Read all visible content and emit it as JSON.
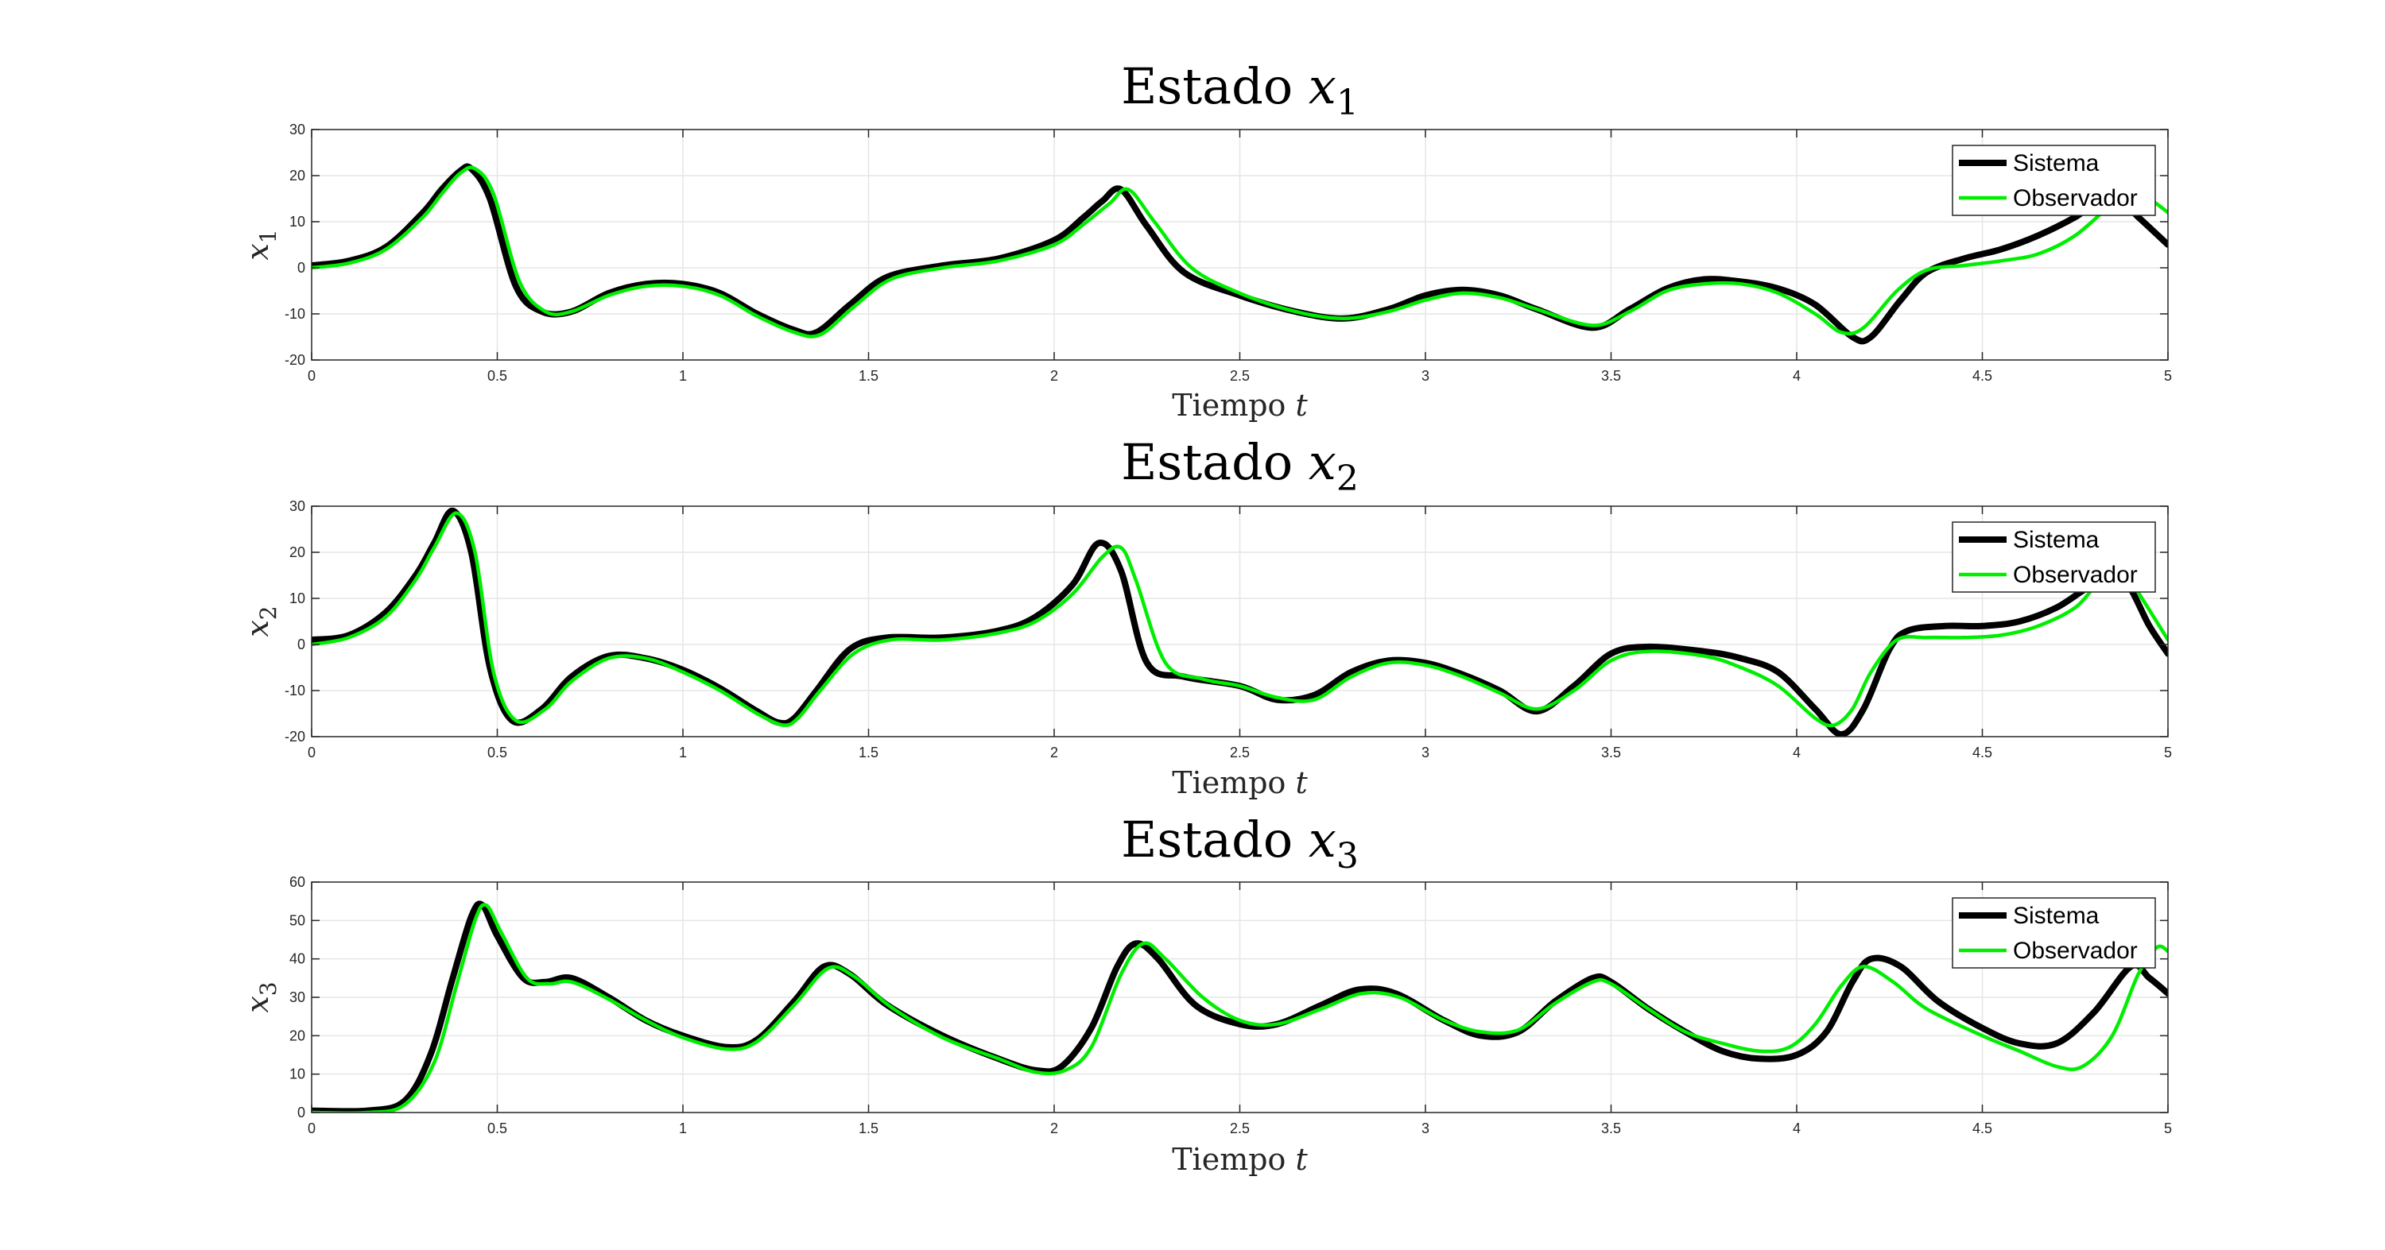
{
  "colors": {
    "sistema": "#000000",
    "observador": "#00ee00",
    "grid": "#e6e6e6",
    "axis": "#262626"
  },
  "chart_data": [
    {
      "type": "line",
      "title": "Estado x1",
      "title_parts": {
        "text": "Estado ",
        "var": "x",
        "sub": "1"
      },
      "xlabel": "Tiempo t",
      "xlabel_parts": {
        "text": "Tiempo ",
        "var": "t"
      },
      "ylabel": "x1",
      "ylabel_parts": {
        "var": "x",
        "sub": "1"
      },
      "xlim": [
        0,
        5
      ],
      "ylim": [
        -20,
        30
      ],
      "xticks": [
        0,
        0.5,
        1,
        1.5,
        2,
        2.5,
        3,
        3.5,
        4,
        4.5,
        5
      ],
      "xtick_labels": [
        "0",
        "0.5",
        "1",
        "1.5",
        "2",
        "2.5",
        "3",
        "3.5",
        "4",
        "4.5",
        "5"
      ],
      "yticks": [
        -20,
        -10,
        0,
        10,
        20,
        30
      ],
      "ytick_labels": [
        "-20",
        "-10",
        "0",
        "10",
        "20",
        "30"
      ],
      "grid": true,
      "legend": "top-right",
      "series": [
        {
          "name": "Sistema",
          "x": [
            0,
            0.1,
            0.2,
            0.3,
            0.35,
            0.4,
            0.43,
            0.48,
            0.55,
            0.62,
            0.7,
            0.8,
            0.9,
            1.0,
            1.1,
            1.2,
            1.3,
            1.36,
            1.45,
            1.55,
            1.7,
            1.85,
            2.0,
            2.08,
            2.13,
            2.18,
            2.25,
            2.35,
            2.5,
            2.65,
            2.78,
            2.9,
            3.0,
            3.1,
            3.2,
            3.3,
            3.45,
            3.55,
            3.65,
            3.75,
            3.85,
            3.95,
            4.05,
            4.15,
            4.2,
            4.28,
            4.35,
            4.45,
            4.55,
            4.65,
            4.75,
            4.85,
            4.92,
            5.0
          ],
          "y": [
            0.5,
            1.5,
            4.5,
            12,
            17,
            21,
            21.5,
            15,
            -4,
            -9.5,
            -9.5,
            -5.5,
            -3.5,
            -3.5,
            -5.5,
            -10,
            -13.5,
            -14,
            -8,
            -2,
            0.5,
            2,
            6,
            11,
            14.5,
            17,
            9,
            -1,
            -6,
            -9.5,
            -11,
            -9,
            -6,
            -4.8,
            -6,
            -9,
            -13,
            -9,
            -4.5,
            -2.5,
            -3,
            -4.5,
            -8,
            -15,
            -15,
            -7,
            -1,
            2,
            4,
            7,
            11,
            16,
            11,
            5
          ]
        },
        {
          "name": "Observador",
          "x": [
            0,
            0.1,
            0.2,
            0.3,
            0.35,
            0.4,
            0.44,
            0.49,
            0.56,
            0.63,
            0.7,
            0.8,
            0.9,
            1.0,
            1.1,
            1.2,
            1.3,
            1.37,
            1.46,
            1.56,
            1.7,
            1.85,
            2.0,
            2.08,
            2.15,
            2.2,
            2.27,
            2.37,
            2.5,
            2.65,
            2.78,
            2.9,
            3.0,
            3.1,
            3.2,
            3.3,
            3.45,
            3.55,
            3.65,
            3.75,
            3.85,
            3.95,
            4.05,
            4.12,
            4.18,
            4.27,
            4.35,
            4.45,
            4.55,
            4.65,
            4.75,
            4.85,
            4.9,
            4.95,
            5.0
          ],
          "y": [
            0,
            1,
            4,
            11,
            16,
            20.5,
            21.5,
            16,
            -3,
            -9.5,
            -9.5,
            -6,
            -4,
            -4,
            -6,
            -10.5,
            -14,
            -14.5,
            -8.5,
            -2.5,
            0,
            1.5,
            5,
            9.5,
            14,
            17,
            10,
            0,
            -5.5,
            -9.5,
            -11,
            -9.5,
            -7,
            -5.5,
            -6.5,
            -9,
            -12.5,
            -9.5,
            -5,
            -3.5,
            -3.5,
            -5.5,
            -10,
            -14,
            -13,
            -5,
            -0.5,
            0.5,
            1.5,
            3,
            7,
            14,
            17,
            15,
            12
          ]
        }
      ]
    },
    {
      "type": "line",
      "title": "Estado x2",
      "title_parts": {
        "text": "Estado ",
        "var": "x",
        "sub": "2"
      },
      "xlabel": "Tiempo t",
      "xlabel_parts": {
        "text": "Tiempo ",
        "var": "t"
      },
      "ylabel": "x2",
      "ylabel_parts": {
        "var": "x",
        "sub": "2"
      },
      "xlim": [
        0,
        5
      ],
      "ylim": [
        -20,
        30
      ],
      "xticks": [
        0,
        0.5,
        1,
        1.5,
        2,
        2.5,
        3,
        3.5,
        4,
        4.5,
        5
      ],
      "xtick_labels": [
        "0",
        "0.5",
        "1",
        "1.5",
        "2",
        "2.5",
        "3",
        "3.5",
        "4",
        "4.5",
        "5"
      ],
      "yticks": [
        -20,
        -10,
        0,
        10,
        20,
        30
      ],
      "ytick_labels": [
        "-20",
        "-10",
        "0",
        "10",
        "20",
        "30"
      ],
      "grid": true,
      "legend": "top-right",
      "series": [
        {
          "name": "Sistema",
          "x": [
            0,
            0.1,
            0.2,
            0.28,
            0.33,
            0.38,
            0.43,
            0.48,
            0.54,
            0.62,
            0.7,
            0.8,
            0.9,
            1.0,
            1.1,
            1.2,
            1.26,
            1.3,
            1.36,
            1.45,
            1.55,
            1.7,
            1.85,
            1.95,
            2.05,
            2.12,
            2.18,
            2.25,
            2.35,
            2.5,
            2.6,
            2.7,
            2.8,
            2.9,
            3.0,
            3.1,
            3.2,
            3.3,
            3.4,
            3.5,
            3.6,
            3.75,
            3.85,
            3.95,
            4.05,
            4.12,
            4.18,
            4.25,
            4.3,
            4.4,
            4.5,
            4.6,
            4.7,
            4.8,
            4.88,
            4.95,
            5.0
          ],
          "y": [
            1,
            2,
            7,
            15,
            22,
            29,
            20,
            -5,
            -16.5,
            -14,
            -7,
            -2.5,
            -3,
            -5.5,
            -9.5,
            -14.5,
            -17,
            -16,
            -10,
            -1,
            1.5,
            1.5,
            3,
            6,
            13,
            22,
            16,
            -4,
            -7,
            -9,
            -12,
            -11,
            -6,
            -3.5,
            -4,
            -6.5,
            -10,
            -14.5,
            -9,
            -2,
            -0.5,
            -1.5,
            -3,
            -6,
            -14,
            -19.5,
            -14,
            -1,
            3,
            4,
            4,
            5,
            8,
            13,
            14,
            4,
            -2
          ]
        },
        {
          "name": "Observador",
          "x": [
            0,
            0.1,
            0.2,
            0.28,
            0.33,
            0.39,
            0.44,
            0.49,
            0.55,
            0.63,
            0.7,
            0.8,
            0.9,
            1.0,
            1.1,
            1.2,
            1.27,
            1.31,
            1.37,
            1.46,
            1.56,
            1.7,
            1.85,
            1.95,
            2.05,
            2.13,
            2.18,
            2.22,
            2.3,
            2.4,
            2.5,
            2.6,
            2.7,
            2.8,
            2.9,
            3.0,
            3.1,
            3.2,
            3.3,
            3.4,
            3.5,
            3.6,
            3.75,
            3.85,
            3.95,
            4.05,
            4.1,
            4.15,
            4.2,
            4.27,
            4.35,
            4.45,
            4.55,
            4.65,
            4.75,
            4.82,
            4.88,
            4.93,
            5.0
          ],
          "y": [
            0,
            1.5,
            6,
            14,
            21,
            28.5,
            20,
            -6,
            -16.5,
            -14,
            -8,
            -3,
            -3,
            -6,
            -10,
            -15,
            -17.5,
            -16,
            -10,
            -2,
            1,
            1,
            2.5,
            5,
            11,
            19,
            21,
            14,
            -4,
            -7.5,
            -9,
            -11.5,
            -12,
            -7,
            -4,
            -4.5,
            -7,
            -10.5,
            -14,
            -10,
            -3.5,
            -1.5,
            -2.5,
            -5,
            -9,
            -16,
            -17.5,
            -14,
            -6,
            1,
            1.5,
            1.5,
            2,
            4,
            8,
            14,
            16,
            10,
            1
          ]
        }
      ]
    },
    {
      "type": "line",
      "title": "Estado x3",
      "title_parts": {
        "text": "Estado ",
        "var": "x",
        "sub": "3"
      },
      "xlabel": "Tiempo t",
      "xlabel_parts": {
        "text": "Tiempo ",
        "var": "t"
      },
      "ylabel": "x3",
      "ylabel_parts": {
        "var": "x",
        "sub": "3"
      },
      "xlim": [
        0,
        5
      ],
      "ylim": [
        0,
        60
      ],
      "xticks": [
        0,
        0.5,
        1,
        1.5,
        2,
        2.5,
        3,
        3.5,
        4,
        4.5,
        5
      ],
      "xtick_labels": [
        "0",
        "0.5",
        "1",
        "1.5",
        "2",
        "2.5",
        "3",
        "3.5",
        "4",
        "4.5",
        "5"
      ],
      "yticks": [
        0,
        10,
        20,
        30,
        40,
        50,
        60
      ],
      "ytick_labels": [
        "0",
        "10",
        "20",
        "30",
        "40",
        "50",
        "60"
      ],
      "grid": true,
      "legend": "top-right",
      "series": [
        {
          "name": "Sistema",
          "x": [
            0,
            0.15,
            0.25,
            0.32,
            0.38,
            0.43,
            0.46,
            0.5,
            0.57,
            0.63,
            0.7,
            0.8,
            0.9,
            1.0,
            1.12,
            1.2,
            1.3,
            1.38,
            1.45,
            1.55,
            1.7,
            1.85,
            1.95,
            2.02,
            2.1,
            2.17,
            2.22,
            2.28,
            2.38,
            2.5,
            2.6,
            2.72,
            2.82,
            2.92,
            3.05,
            3.15,
            3.25,
            3.35,
            3.45,
            3.5,
            3.6,
            3.7,
            3.8,
            3.9,
            4.0,
            4.08,
            4.15,
            4.2,
            4.28,
            4.38,
            4.5,
            4.6,
            4.7,
            4.8,
            4.9,
            4.95,
            5.0
          ],
          "y": [
            0.5,
            0.5,
            3,
            15,
            35,
            51,
            54,
            46,
            35,
            34,
            35,
            30,
            24,
            20,
            17,
            19,
            29,
            38,
            36,
            28,
            20,
            14,
            11,
            12,
            22,
            38,
            44,
            40,
            28,
            23,
            23,
            28,
            32,
            31,
            24,
            20,
            21,
            29,
            35,
            34,
            27,
            21,
            16,
            14,
            15,
            21,
            34,
            40,
            38,
            29,
            22,
            18,
            18,
            26,
            38,
            35,
            31
          ]
        },
        {
          "name": "Observador",
          "x": [
            0,
            0.15,
            0.25,
            0.33,
            0.39,
            0.44,
            0.47,
            0.51,
            0.58,
            0.64,
            0.7,
            0.8,
            0.9,
            1.0,
            1.12,
            1.2,
            1.3,
            1.39,
            1.46,
            1.56,
            1.7,
            1.85,
            1.95,
            2.03,
            2.1,
            2.18,
            2.24,
            2.3,
            2.4,
            2.5,
            2.6,
            2.72,
            2.83,
            2.93,
            3.05,
            3.15,
            3.25,
            3.35,
            3.45,
            3.5,
            3.6,
            3.7,
            3.8,
            3.9,
            3.98,
            4.05,
            4.12,
            4.18,
            4.26,
            4.35,
            4.5,
            4.6,
            4.7,
            4.77,
            4.85,
            4.92,
            4.97,
            5.0
          ],
          "y": [
            0,
            0,
            2,
            13,
            33,
            50,
            54,
            47,
            35,
            33.5,
            34,
            29.5,
            24,
            19.5,
            16.5,
            18.5,
            28,
            37.5,
            35.5,
            27.5,
            19.5,
            14,
            10.5,
            11,
            17,
            36,
            44,
            40,
            30,
            24,
            23,
            27,
            31,
            30,
            24,
            21,
            21.5,
            28.5,
            34,
            33.5,
            27,
            21,
            18,
            16,
            17,
            23,
            33,
            38,
            34,
            27,
            20,
            16,
            12,
            12,
            20,
            36,
            43,
            42
          ]
        }
      ]
    }
  ]
}
